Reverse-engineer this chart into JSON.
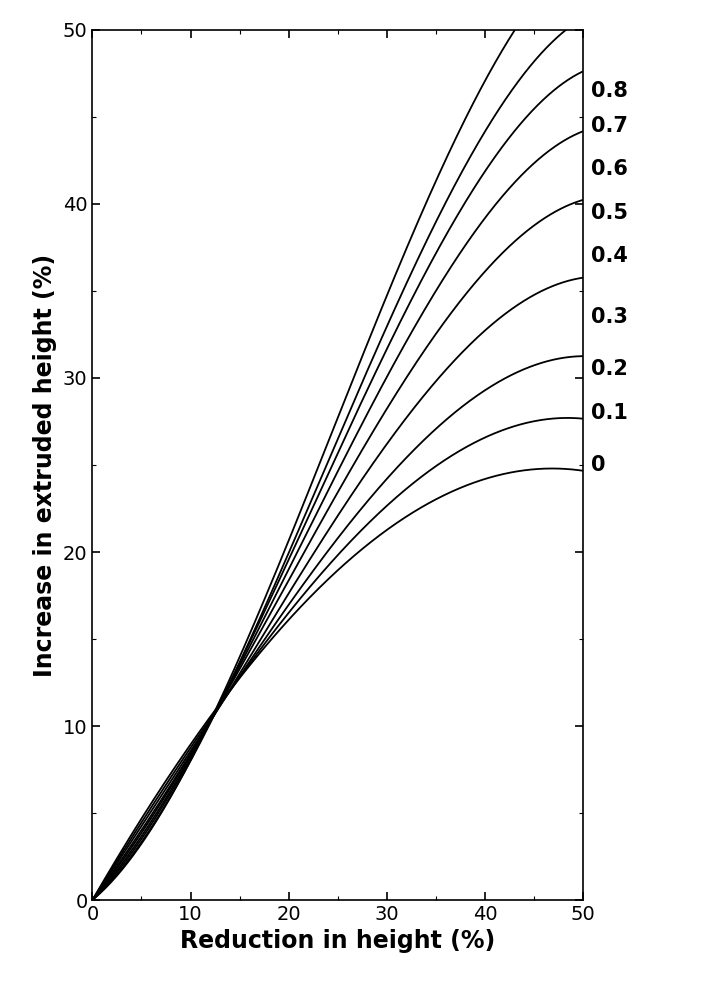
{
  "friction_factors": [
    0.0,
    0.1,
    0.2,
    0.3,
    0.4,
    0.5,
    0.6,
    0.7,
    0.8
  ],
  "labels": [
    "0",
    "0.1",
    "0.2",
    "0.3",
    "0.4",
    "0.5",
    "0.6",
    "0.7",
    "0.8"
  ],
  "xlabel": "Reduction in height (%)",
  "ylabel": "Increase in extruded height (%)",
  "xlim": [
    0,
    50
  ],
  "ylim": [
    0,
    50
  ],
  "xticks": [
    0,
    10,
    20,
    30,
    40,
    50
  ],
  "yticks": [
    0,
    10,
    20,
    30,
    40,
    50
  ],
  "line_color": "#000000",
  "background_color": "#ffffff",
  "label_fontsize": 17,
  "tick_fontsize": 14,
  "annotation_fontsize": 15,
  "linewidth": 1.3,
  "x_pts": [
    0,
    10,
    15,
    20,
    25,
    30,
    35,
    40,
    45,
    50
  ],
  "y_data": {
    "0.0": [
      0,
      8.3,
      12.5,
      16.5,
      19.5,
      21.5,
      22.8,
      23.8,
      24.5,
      25.0
    ],
    "0.1": [
      0,
      8.3,
      12.5,
      16.8,
      20.2,
      23.0,
      24.8,
      26.2,
      27.2,
      28.0
    ],
    "0.2": [
      0,
      8.3,
      12.6,
      17.2,
      21.0,
      24.5,
      27.0,
      29.0,
      30.5,
      31.5
    ],
    "0.3": [
      0,
      8.3,
      12.7,
      17.8,
      22.2,
      26.5,
      29.8,
      32.5,
      34.5,
      36.0
    ],
    "0.4": [
      0,
      8.3,
      12.8,
      18.5,
      23.8,
      28.5,
      32.5,
      35.8,
      38.5,
      40.5
    ],
    "0.5": [
      0,
      8.3,
      12.9,
      19.0,
      25.0,
      30.5,
      35.0,
      38.8,
      42.0,
      44.5
    ],
    "0.6": [
      0,
      8.3,
      13.0,
      19.5,
      26.0,
      32.2,
      37.2,
      41.5,
      45.0,
      48.0
    ],
    "0.7": [
      0,
      8.3,
      13.0,
      19.8,
      26.8,
      33.5,
      39.0,
      43.8,
      47.8,
      51.0
    ],
    "0.8": [
      0,
      8.3,
      13.2,
      20.5,
      28.0,
      35.5,
      41.5,
      46.5,
      51.0,
      55.0
    ]
  },
  "label_y_pos": {
    "0.0": 25.0,
    "0.1": 28.0,
    "0.2": 31.0,
    "0.3": 35.5,
    "0.4": 39.5,
    "0.5": 43.0,
    "0.6": 46.5,
    "0.7": 44.5,
    "0.8": 47.5
  }
}
